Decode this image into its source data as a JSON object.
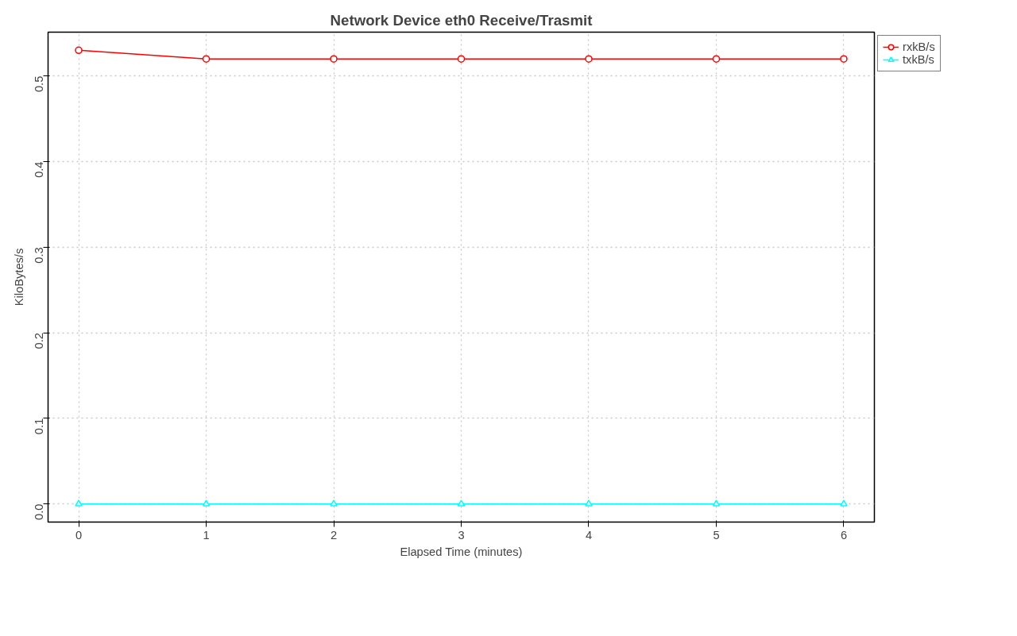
{
  "chart_data": {
    "type": "line",
    "title": "Network Device eth0 Receive/Trasmit",
    "xlabel": "Elapsed Time (minutes)",
    "ylabel": "KiloBytes/s",
    "x": [
      0,
      1,
      2,
      3,
      4,
      5,
      6
    ],
    "series": [
      {
        "name": "rxkB/s",
        "color": "#ff0000",
        "marker": "circle",
        "values": [
          0.53,
          0.52,
          0.52,
          0.52,
          0.52,
          0.52,
          0.52
        ]
      },
      {
        "name": "txkB/s",
        "color": "#00ffff",
        "marker": "triangle",
        "values": [
          0,
          0,
          0,
          0,
          0,
          0,
          0
        ]
      }
    ],
    "xlim": [
      -0.24,
      6.24
    ],
    "ylim": [
      -0.0212,
      0.5512
    ],
    "xticks": [
      0,
      1,
      2,
      3,
      4,
      5,
      6
    ],
    "yticks": [
      {
        "value": 0,
        "label": "0.0"
      },
      0.1,
      0.2,
      0.3,
      0.4,
      0.5
    ],
    "grid": true,
    "legend": "top right",
    "line_style": "solid"
  }
}
